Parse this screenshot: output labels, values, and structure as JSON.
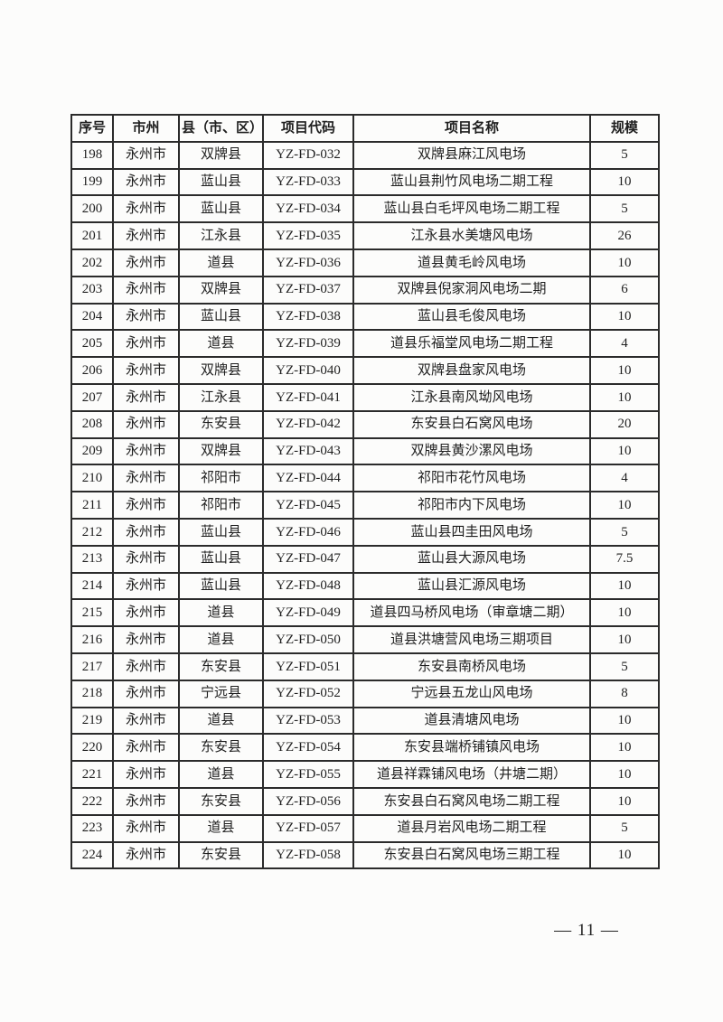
{
  "page": {
    "number_display": "— 11 —"
  },
  "table": {
    "columns": [
      "序号",
      "市州",
      "县（市、区）",
      "项目代码",
      "项目名称",
      "规模"
    ],
    "column_keys": [
      "index",
      "city",
      "county",
      "code",
      "name",
      "scale"
    ],
    "rows": [
      [
        "198",
        "永州市",
        "双牌县",
        "YZ-FD-032",
        "双牌县麻江风电场",
        "5"
      ],
      [
        "199",
        "永州市",
        "蓝山县",
        "YZ-FD-033",
        "蓝山县荆竹风电场二期工程",
        "10"
      ],
      [
        "200",
        "永州市",
        "蓝山县",
        "YZ-FD-034",
        "蓝山县白毛坪风电场二期工程",
        "5"
      ],
      [
        "201",
        "永州市",
        "江永县",
        "YZ-FD-035",
        "江永县水美塘风电场",
        "26"
      ],
      [
        "202",
        "永州市",
        "道县",
        "YZ-FD-036",
        "道县黄毛岭风电场",
        "10"
      ],
      [
        "203",
        "永州市",
        "双牌县",
        "YZ-FD-037",
        "双牌县倪家洞风电场二期",
        "6"
      ],
      [
        "204",
        "永州市",
        "蓝山县",
        "YZ-FD-038",
        "蓝山县毛俊风电场",
        "10"
      ],
      [
        "205",
        "永州市",
        "道县",
        "YZ-FD-039",
        "道县乐福堂风电场二期工程",
        "4"
      ],
      [
        "206",
        "永州市",
        "双牌县",
        "YZ-FD-040",
        "双牌县盘家风电场",
        "10"
      ],
      [
        "207",
        "永州市",
        "江永县",
        "YZ-FD-041",
        "江永县南风坳风电场",
        "10"
      ],
      [
        "208",
        "永州市",
        "东安县",
        "YZ-FD-042",
        "东安县白石窝风电场",
        "20"
      ],
      [
        "209",
        "永州市",
        "双牌县",
        "YZ-FD-043",
        "双牌县黄沙漯风电场",
        "10"
      ],
      [
        "210",
        "永州市",
        "祁阳市",
        "YZ-FD-044",
        "祁阳市花竹风电场",
        "4"
      ],
      [
        "211",
        "永州市",
        "祁阳市",
        "YZ-FD-045",
        "祁阳市内下风电场",
        "10"
      ],
      [
        "212",
        "永州市",
        "蓝山县",
        "YZ-FD-046",
        "蓝山县四圭田风电场",
        "5"
      ],
      [
        "213",
        "永州市",
        "蓝山县",
        "YZ-FD-047",
        "蓝山县大源风电场",
        "7.5"
      ],
      [
        "214",
        "永州市",
        "蓝山县",
        "YZ-FD-048",
        "蓝山县汇源风电场",
        "10"
      ],
      [
        "215",
        "永州市",
        "道县",
        "YZ-FD-049",
        "道县四马桥风电场（审章塘二期）",
        "10"
      ],
      [
        "216",
        "永州市",
        "道县",
        "YZ-FD-050",
        "道县洪塘营风电场三期项目",
        "10"
      ],
      [
        "217",
        "永州市",
        "东安县",
        "YZ-FD-051",
        "东安县南桥风电场",
        "5"
      ],
      [
        "218",
        "永州市",
        "宁远县",
        "YZ-FD-052",
        "宁远县五龙山风电场",
        "8"
      ],
      [
        "219",
        "永州市",
        "道县",
        "YZ-FD-053",
        "道县清塘风电场",
        "10"
      ],
      [
        "220",
        "永州市",
        "东安县",
        "YZ-FD-054",
        "东安县端桥铺镇风电场",
        "10"
      ],
      [
        "221",
        "永州市",
        "道县",
        "YZ-FD-055",
        "道县祥霖铺风电场（井塘二期）",
        "10"
      ],
      [
        "222",
        "永州市",
        "东安县",
        "YZ-FD-056",
        "东安县白石窝风电场二期工程",
        "10"
      ],
      [
        "223",
        "永州市",
        "道县",
        "YZ-FD-057",
        "道县月岩风电场二期工程",
        "5"
      ],
      [
        "224",
        "永州市",
        "东安县",
        "YZ-FD-058",
        "东安县白石窝风电场三期工程",
        "10"
      ]
    ]
  }
}
